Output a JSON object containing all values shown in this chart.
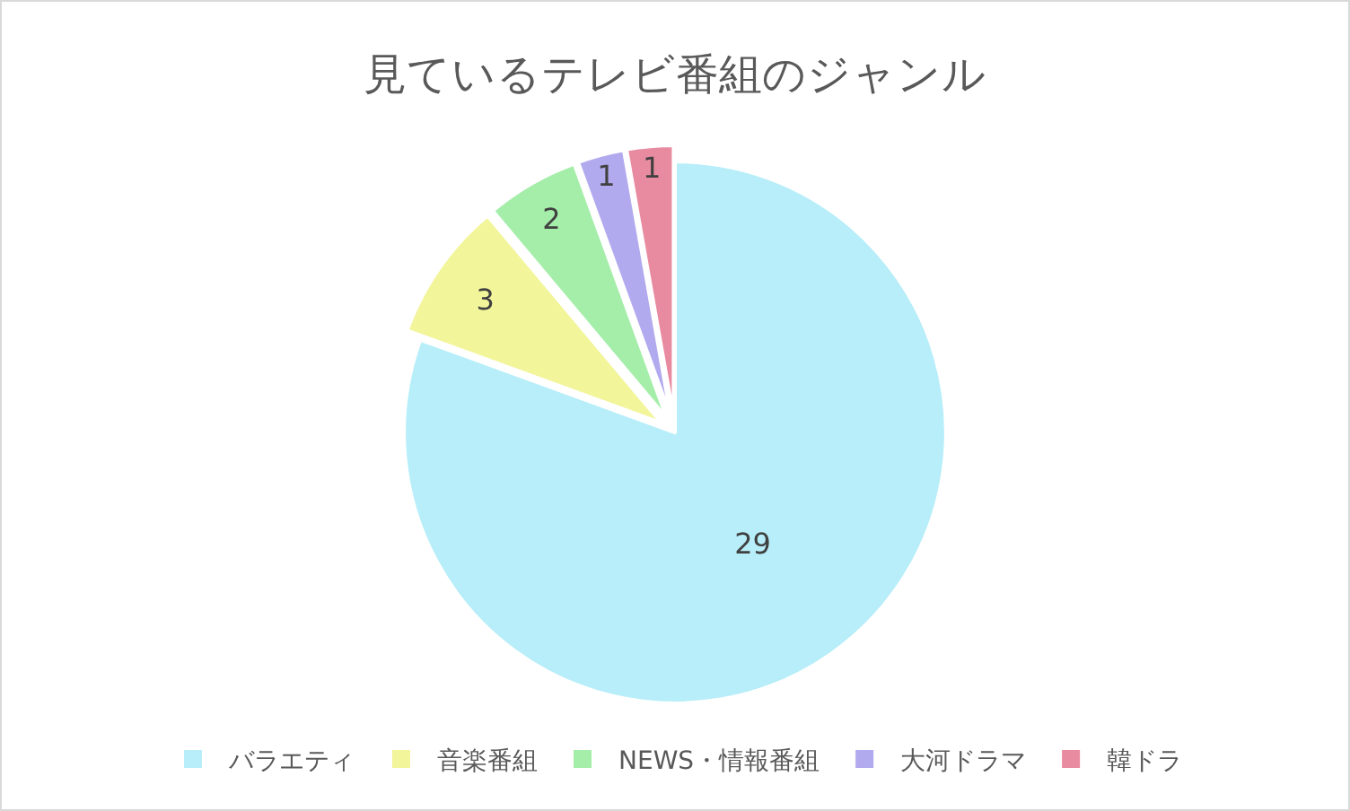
{
  "chart_data": {
    "type": "pie",
    "title": "見ているテレビ番組のジャンル",
    "categories": [
      "バラエティ",
      "音楽番組",
      "NEWS・情報番組",
      "大河ドラマ",
      "韓ドラ"
    ],
    "values": [
      29,
      3,
      2,
      1,
      1
    ],
    "colors": [
      "#b7eef9",
      "#f2f59a",
      "#a5eeaa",
      "#b2aaee",
      "#e98ba0"
    ],
    "data_labels": true,
    "legend": "bottom"
  }
}
